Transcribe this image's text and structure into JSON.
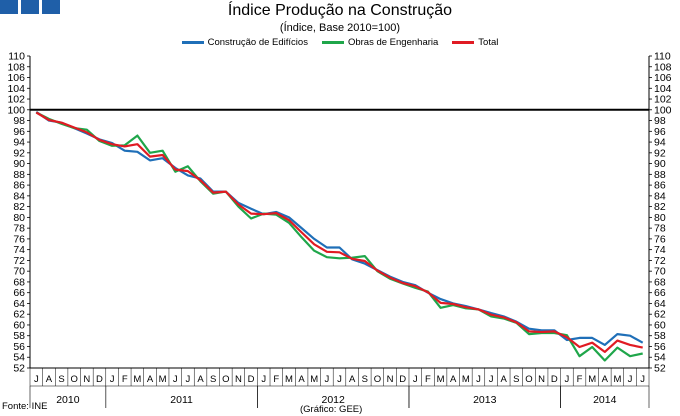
{
  "header": {
    "title": "Índice Produção na Construção",
    "subtitle": "(Índice, Base 2010=100)"
  },
  "footer": {
    "source": "Fonte: INE",
    "credit": "(Gráfico: GEE)"
  },
  "colors": {
    "logo": "#1f5fa8",
    "reference_line": "#000000",
    "axis": "#000000"
  },
  "chart_data": {
    "type": "line",
    "ylim": [
      52,
      110
    ],
    "y_ticks": [
      52,
      54,
      56,
      58,
      60,
      62,
      64,
      66,
      68,
      70,
      72,
      74,
      76,
      78,
      80,
      82,
      84,
      86,
      88,
      90,
      92,
      94,
      96,
      98,
      100,
      102,
      104,
      106,
      108,
      110
    ],
    "reference_line": 100,
    "grid": false,
    "legend_position": "top-center",
    "x": [
      "J",
      "A",
      "S",
      "O",
      "N",
      "D",
      "J",
      "F",
      "M",
      "A",
      "M",
      "J",
      "J",
      "A",
      "S",
      "O",
      "N",
      "D",
      "J",
      "F",
      "M",
      "A",
      "M",
      "J",
      "J",
      "A",
      "S",
      "O",
      "N",
      "D",
      "J",
      "F",
      "M",
      "A",
      "M",
      "J",
      "J",
      "A",
      "S",
      "O",
      "N",
      "D",
      "J",
      "F",
      "M",
      "A",
      "M",
      "J",
      "J"
    ],
    "years": [
      {
        "label": "2010",
        "start": 0,
        "end": 6
      },
      {
        "label": "2011",
        "start": 6,
        "end": 18
      },
      {
        "label": "2012",
        "start": 18,
        "end": 30
      },
      {
        "label": "2013",
        "start": 30,
        "end": 42
      },
      {
        "label": "2014",
        "start": 42,
        "end": 49
      }
    ],
    "series": [
      {
        "name": "Construção de Edifícios",
        "color": "#1f6fb8",
        "values": [
          99.6,
          98.0,
          97.6,
          96.6,
          95.6,
          94.5,
          93.8,
          92.4,
          92.2,
          90.6,
          91.0,
          89.2,
          87.8,
          87.2,
          84.8,
          84.8,
          82.7,
          81.6,
          80.6,
          81.0,
          80.0,
          78.0,
          76.0,
          74.4,
          74.4,
          72.2,
          71.4,
          70.2,
          69.0,
          68.0,
          67.4,
          66.0,
          64.8,
          64.0,
          63.5,
          62.9,
          62.2,
          61.6,
          60.6,
          59.3,
          59.0,
          59.0,
          57.2,
          57.6,
          57.6,
          56.3,
          58.3,
          58.0,
          56.7
        ]
      },
      {
        "name": "Obras de Engenharia",
        "color": "#1fa64a",
        "values": [
          99.5,
          98.3,
          97.4,
          96.6,
          96.3,
          94.2,
          93.3,
          93.4,
          95.2,
          92.0,
          92.4,
          88.5,
          89.5,
          86.7,
          84.4,
          84.8,
          82.0,
          79.8,
          80.7,
          80.5,
          79.0,
          76.3,
          73.8,
          72.6,
          72.4,
          72.5,
          72.8,
          70.0,
          68.6,
          67.7,
          66.9,
          66.2,
          63.2,
          63.7,
          63.1,
          62.9,
          61.6,
          61.2,
          60.4,
          58.3,
          58.5,
          58.5,
          58.1,
          54.2,
          55.9,
          53.4,
          55.8,
          54.2,
          54.7
        ]
      },
      {
        "name": "Total",
        "color": "#e01b23",
        "values": [
          99.5,
          98.1,
          97.6,
          96.7,
          95.8,
          94.4,
          93.6,
          93.2,
          93.6,
          91.3,
          91.6,
          88.9,
          88.6,
          86.9,
          84.6,
          84.8,
          82.4,
          80.7,
          80.6,
          80.8,
          79.5,
          77.2,
          75.0,
          73.6,
          73.5,
          72.3,
          71.9,
          70.1,
          68.8,
          67.8,
          67.2,
          66.1,
          64.1,
          63.9,
          63.3,
          62.9,
          61.9,
          61.4,
          60.5,
          58.8,
          58.7,
          58.8,
          57.7,
          55.9,
          56.7,
          55.0,
          57.1,
          56.3,
          55.8
        ]
      }
    ]
  }
}
